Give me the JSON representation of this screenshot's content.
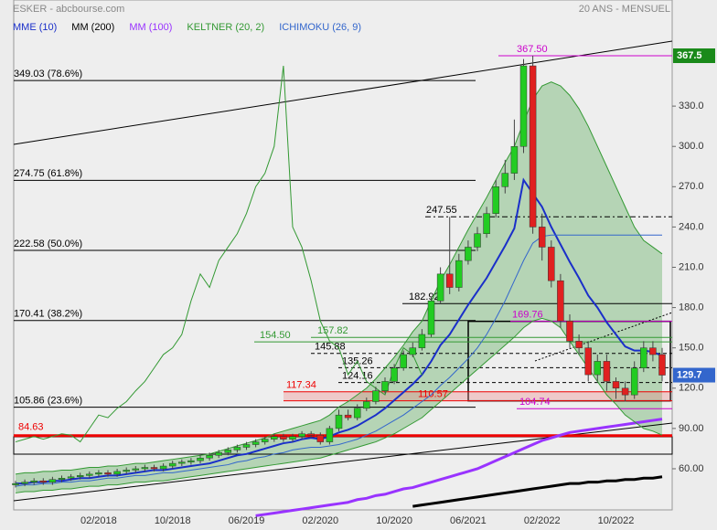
{
  "header": {
    "title": "ESKER - abcbourse.com",
    "period": "20 ANS - MENSUEL"
  },
  "chart_data": {
    "type": "candlestick",
    "categories": [
      null,
      null,
      null,
      null,
      null,
      null,
      null,
      null,
      null,
      "02/2018",
      null,
      null,
      null,
      null,
      null,
      null,
      null,
      "10/2018",
      null,
      null,
      null,
      null,
      null,
      null,
      null,
      "06/2019",
      null,
      null,
      null,
      null,
      null,
      null,
      null,
      "02/2020",
      null,
      null,
      null,
      null,
      null,
      null,
      null,
      "10/2020",
      null,
      null,
      null,
      null,
      null,
      null,
      null,
      "06/2021",
      null,
      null,
      null,
      null,
      null,
      null,
      null,
      "02/2022",
      null,
      null,
      null,
      null,
      null,
      null,
      null,
      "10/2022",
      null,
      null,
      null,
      null,
      null
    ],
    "open": [
      48,
      49,
      50,
      51,
      50,
      52,
      53,
      54,
      55,
      56,
      57,
      56,
      58,
      59,
      60,
      61,
      60,
      62,
      64,
      65,
      66,
      68,
      70,
      72,
      74,
      76,
      78,
      80,
      82,
      84,
      82,
      84,
      86,
      85,
      80,
      90,
      100,
      98,
      105,
      110,
      118,
      125,
      135,
      145,
      150,
      160,
      185,
      205,
      195,
      215,
      225,
      235,
      250,
      270,
      280,
      300,
      360,
      240,
      225,
      200,
      170,
      155,
      150,
      130,
      140,
      125,
      120,
      115,
      135,
      150,
      145
    ],
    "high": [
      51,
      52,
      53,
      53,
      54,
      55,
      56,
      57,
      58,
      59,
      59,
      60,
      61,
      62,
      63,
      63,
      64,
      66,
      67,
      68,
      70,
      72,
      74,
      76,
      78,
      80,
      82,
      84,
      86,
      86,
      86,
      88,
      88,
      87,
      92,
      104,
      104,
      108,
      113,
      121,
      128,
      138,
      148,
      154,
      164,
      188,
      210,
      247.55,
      220,
      230,
      240,
      255,
      275,
      290,
      320,
      365,
      367.5,
      250,
      230,
      205,
      175,
      160,
      155,
      145,
      145,
      128,
      125,
      140,
      155,
      155,
      150
    ],
    "low": [
      46,
      47,
      48,
      48,
      48,
      50,
      51,
      52,
      53,
      54,
      54,
      54,
      56,
      57,
      58,
      58,
      58,
      60,
      62,
      63,
      64,
      66,
      68,
      70,
      72,
      74,
      76,
      78,
      80,
      80,
      80,
      82,
      83,
      78,
      78,
      88,
      96,
      96,
      103,
      108,
      116,
      123,
      133,
      143,
      148,
      158,
      183,
      190,
      192,
      212,
      222,
      232,
      247,
      265,
      275,
      295,
      235,
      215,
      195,
      165,
      150,
      145,
      125,
      125,
      118,
      112,
      110,
      112,
      132,
      140,
      125
    ],
    "close": [
      49,
      50,
      51,
      50,
      52,
      53,
      54,
      55,
      56,
      57,
      56,
      58,
      59,
      60,
      61,
      60,
      62,
      64,
      65,
      66,
      68,
      70,
      72,
      74,
      76,
      78,
      80,
      82,
      84,
      82,
      84,
      86,
      85,
      80,
      90,
      100,
      98,
      105,
      110,
      118,
      125,
      135,
      145,
      150,
      160,
      185,
      205,
      195,
      215,
      225,
      235,
      250,
      270,
      280,
      300,
      360,
      240,
      225,
      200,
      170,
      155,
      150,
      130,
      140,
      125,
      120,
      115,
      135,
      150,
      145,
      129.7
    ],
    "up_color": "#22cc22",
    "down_color": "#e02020",
    "series": [
      {
        "name": "MME (10)",
        "color": "#1a2fc9",
        "values": [
          49,
          49,
          50,
          50,
          51,
          51,
          52,
          53,
          53,
          54,
          55,
          55,
          56,
          57,
          58,
          59,
          59,
          60,
          61,
          62,
          63,
          64,
          66,
          68,
          70,
          71,
          73,
          75,
          77,
          79,
          80,
          82,
          83,
          82,
          84,
          87,
          89,
          92,
          96,
          100,
          105,
          111,
          117,
          123,
          130,
          140,
          152,
          160,
          171,
          182,
          192,
          202,
          214,
          226,
          239,
          275,
          265,
          255,
          240,
          227,
          214,
          202,
          189,
          180,
          169,
          160,
          151,
          148,
          148,
          147,
          144
        ]
      },
      {
        "name": "MM (200)",
        "color": "#000000",
        "values": [
          null,
          null,
          null,
          null,
          null,
          null,
          null,
          null,
          null,
          null,
          null,
          null,
          null,
          null,
          null,
          null,
          null,
          null,
          null,
          null,
          null,
          null,
          null,
          null,
          null,
          null,
          null,
          null,
          null,
          null,
          null,
          null,
          null,
          null,
          null,
          null,
          null,
          null,
          null,
          null,
          null,
          null,
          null,
          32,
          33,
          34,
          35,
          36,
          37,
          38,
          39,
          40,
          41,
          42,
          43,
          44,
          45,
          46,
          47,
          48,
          49,
          49,
          50,
          50,
          51,
          51,
          52,
          52,
          53,
          53,
          54
        ]
      },
      {
        "name": "MM (100)",
        "color": "#9933ff",
        "values": [
          null,
          null,
          null,
          null,
          null,
          null,
          null,
          null,
          null,
          null,
          null,
          null,
          null,
          null,
          null,
          null,
          null,
          null,
          null,
          null,
          null,
          null,
          null,
          null,
          null,
          null,
          25,
          26,
          27,
          28,
          29,
          30,
          31,
          32,
          33,
          34,
          35,
          37,
          38,
          40,
          41,
          43,
          45,
          46,
          48,
          50,
          52,
          54,
          56,
          58,
          60,
          63,
          66,
          69,
          72,
          75,
          78,
          81,
          83,
          85,
          87,
          88,
          89,
          90,
          91,
          92,
          93,
          94,
          95,
          96,
          97
        ]
      },
      {
        "name": "KELTNER (20, 2)",
        "color": "#339933",
        "values": [
          56,
          57,
          57,
          58,
          58,
          59,
          59,
          60,
          61,
          61,
          62,
          62,
          63,
          64,
          64,
          65,
          66,
          67,
          68,
          69,
          70,
          71,
          73,
          75,
          77,
          79,
          81,
          83,
          86,
          88,
          90,
          92,
          94,
          96,
          100,
          106,
          110,
          115,
          120,
          127,
          135,
          143,
          152,
          162,
          170,
          185,
          200,
          212,
          225,
          238,
          250,
          262,
          275,
          288,
          300,
          318,
          335,
          345,
          348,
          345,
          338,
          328,
          315,
          300,
          285,
          270,
          255,
          240,
          230,
          225,
          220
        ],
        "lower": [
          42,
          43,
          43,
          44,
          44,
          45,
          45,
          46,
          47,
          47,
          48,
          48,
          49,
          50,
          50,
          51,
          51,
          52,
          53,
          54,
          55,
          56,
          57,
          58,
          59,
          60,
          61,
          62,
          63,
          64,
          65,
          66,
          67,
          68,
          70,
          72,
          74,
          76,
          78,
          80,
          83,
          86,
          90,
          94,
          98,
          104,
          110,
          116,
          122,
          128,
          134,
          140,
          146,
          152,
          158,
          165,
          170,
          172,
          170,
          165,
          155,
          145,
          135,
          125,
          115,
          108,
          100,
          95,
          90,
          88,
          85
        ]
      },
      {
        "name": "ICHIMOKU (26, 9)",
        "color": "#3366cc",
        "values": [
          47,
          48,
          48,
          49,
          49,
          50,
          50,
          51,
          51,
          52,
          53,
          53,
          54,
          55,
          55,
          56,
          57,
          57,
          58,
          59,
          60,
          61,
          62,
          63,
          65,
          66,
          68,
          69,
          71,
          72,
          74,
          75,
          76,
          76,
          77,
          78,
          80,
          82,
          85,
          88,
          92,
          96,
          100,
          105,
          110,
          115,
          122,
          128,
          135,
          142,
          150,
          160,
          172,
          185,
          200,
          215,
          228,
          233,
          234,
          234,
          234,
          234,
          234,
          234,
          234,
          234,
          234,
          234,
          234,
          234,
          234
        ]
      }
    ],
    "fib_levels": [
      {
        "value": 349.03,
        "label": "349.03  (78.6%)"
      },
      {
        "value": 274.75,
        "label": "274.75  (61.8%)"
      },
      {
        "value": 222.58,
        "label": "222.58  (50.0%)"
      },
      {
        "value": 170.41,
        "label": "170.41  (38.2%)"
      },
      {
        "value": 105.86,
        "label": "105.86  (23.6%)"
      }
    ],
    "support": {
      "value": 84.63,
      "label": "84.63"
    },
    "levels": [
      {
        "value": 367.5,
        "label": "367.50"
      },
      {
        "value": 247.55,
        "label": "247.55"
      },
      {
        "value": 182.92,
        "label": "182.92"
      },
      {
        "value": 169.76,
        "label": "169.76"
      },
      {
        "value": 157.82,
        "label": "157.82"
      },
      {
        "value": 154.5,
        "label": "154.50"
      },
      {
        "value": 145.88,
        "label": "145.88"
      },
      {
        "value": 135.26,
        "label": "135.26"
      },
      {
        "value": 124.16,
        "label": "124.16"
      },
      {
        "value": 117.34,
        "label": "117.34"
      },
      {
        "value": 110.57,
        "label": "110.57"
      },
      {
        "value": 104.74,
        "label": "104.74"
      }
    ],
    "price_tags": [
      367.5,
      129.7
    ],
    "ylim": [
      14.4,
      409
    ],
    "yticks": [
      {
        "value": 60,
        "label": "60.00"
      },
      {
        "value": 90,
        "label": "90.00"
      },
      {
        "value": 120,
        "label": "120.0"
      },
      {
        "value": 150,
        "label": "150.0"
      },
      {
        "value": 180,
        "label": "180.0"
      },
      {
        "value": 210,
        "label": "210.0"
      },
      {
        "value": 240,
        "label": "240.0"
      },
      {
        "value": 270,
        "label": "270.0"
      },
      {
        "value": 300,
        "label": "300.0"
      },
      {
        "value": 330,
        "label": "330.0"
      }
    ],
    "grid": false
  }
}
